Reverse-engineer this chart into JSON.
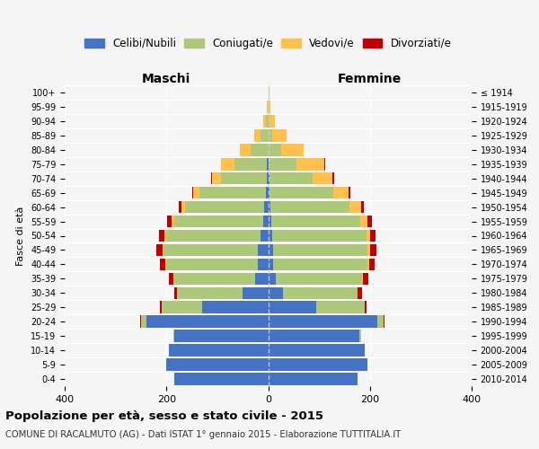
{
  "age_groups": [
    "0-4",
    "5-9",
    "10-14",
    "15-19",
    "20-24",
    "25-29",
    "30-34",
    "35-39",
    "40-44",
    "45-49",
    "50-54",
    "55-59",
    "60-64",
    "65-69",
    "70-74",
    "75-79",
    "80-84",
    "85-89",
    "90-94",
    "95-99",
    "100+"
  ],
  "birth_years": [
    "2010-2014",
    "2005-2009",
    "2000-2004",
    "1995-1999",
    "1990-1994",
    "1985-1989",
    "1980-1984",
    "1975-1979",
    "1970-1974",
    "1965-1969",
    "1960-1964",
    "1955-1959",
    "1950-1954",
    "1945-1949",
    "1940-1944",
    "1935-1939",
    "1930-1934",
    "1925-1929",
    "1920-1924",
    "1915-1919",
    "≤ 1914"
  ],
  "male": {
    "celibi": [
      185,
      200,
      195,
      185,
      240,
      130,
      50,
      25,
      20,
      20,
      15,
      10,
      8,
      5,
      3,
      2,
      0,
      0,
      0,
      0,
      0
    ],
    "coniugati": [
      0,
      0,
      0,
      2,
      10,
      80,
      130,
      160,
      180,
      185,
      185,
      175,
      155,
      130,
      90,
      65,
      35,
      15,
      5,
      0,
      0
    ],
    "vedovi": [
      0,
      0,
      0,
      0,
      0,
      0,
      0,
      2,
      3,
      3,
      4,
      5,
      8,
      12,
      18,
      25,
      20,
      12,
      5,
      2,
      0
    ],
    "divorziati": [
      0,
      0,
      0,
      0,
      2,
      2,
      5,
      8,
      10,
      12,
      10,
      8,
      5,
      3,
      2,
      1,
      0,
      0,
      0,
      0,
      0
    ]
  },
  "female": {
    "nubili": [
      175,
      195,
      190,
      180,
      215,
      95,
      30,
      15,
      10,
      10,
      8,
      6,
      5,
      3,
      2,
      1,
      0,
      0,
      0,
      0,
      0
    ],
    "coniugate": [
      0,
      0,
      0,
      2,
      12,
      95,
      145,
      170,
      185,
      185,
      185,
      175,
      155,
      125,
      85,
      55,
      25,
      8,
      2,
      0,
      0
    ],
    "vedove": [
      0,
      0,
      0,
      0,
      0,
      0,
      1,
      2,
      3,
      5,
      8,
      15,
      22,
      30,
      40,
      55,
      45,
      28,
      12,
      5,
      2
    ],
    "divorziate": [
      0,
      0,
      0,
      0,
      2,
      4,
      8,
      10,
      12,
      12,
      10,
      8,
      6,
      4,
      2,
      1,
      0,
      0,
      0,
      0,
      0
    ]
  },
  "colors": {
    "celibi": "#4472c4",
    "coniugati": "#adc878",
    "vedovi": "#ffc04c",
    "divorziati": "#c00000"
  },
  "title": "Popolazione per età, sesso e stato civile - 2015",
  "subtitle": "COMUNE DI RACALMUTO (AG) - Dati ISTAT 1° gennaio 2015 - Elaborazione TUTTITALIA.IT",
  "xlabel_left": "Maschi",
  "xlabel_right": "Femmine",
  "ylabel": "Fasce di età",
  "xlim": 400,
  "background_color": "#f5f5f5",
  "bar_color_alpha": 1.0
}
